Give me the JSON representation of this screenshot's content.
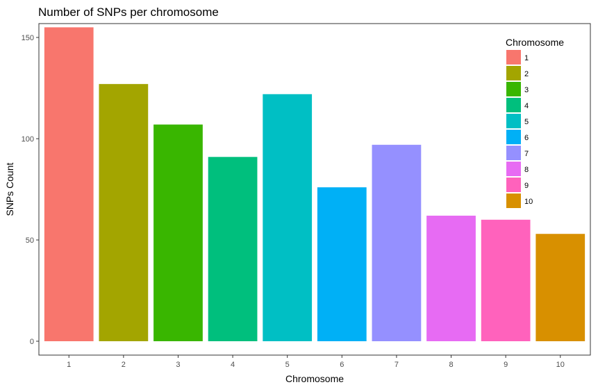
{
  "chart_data": {
    "type": "bar",
    "title": "Number of SNPs per chromosome",
    "xlabel": "Chromosome",
    "ylabel": "SNPs Count",
    "categories": [
      "1",
      "2",
      "3",
      "4",
      "5",
      "6",
      "7",
      "8",
      "9",
      "10"
    ],
    "values": [
      155,
      127,
      107,
      91,
      122,
      76,
      97,
      62,
      60,
      53
    ],
    "colors": [
      "#F8766D",
      "#A3A500",
      "#39B600",
      "#00BF7D",
      "#00BFC4",
      "#00B0F6",
      "#9590FF",
      "#E76BF3",
      "#FF62BC",
      "#D89000"
    ],
    "ylim": [
      0,
      160
    ],
    "yticks": [
      0,
      50,
      100,
      150
    ],
    "grid": false,
    "legend": {
      "title": "Chromosome",
      "placement": "top-right",
      "entries": [
        "1",
        "2",
        "3",
        "4",
        "5",
        "6",
        "7",
        "8",
        "9",
        "10"
      ]
    }
  }
}
